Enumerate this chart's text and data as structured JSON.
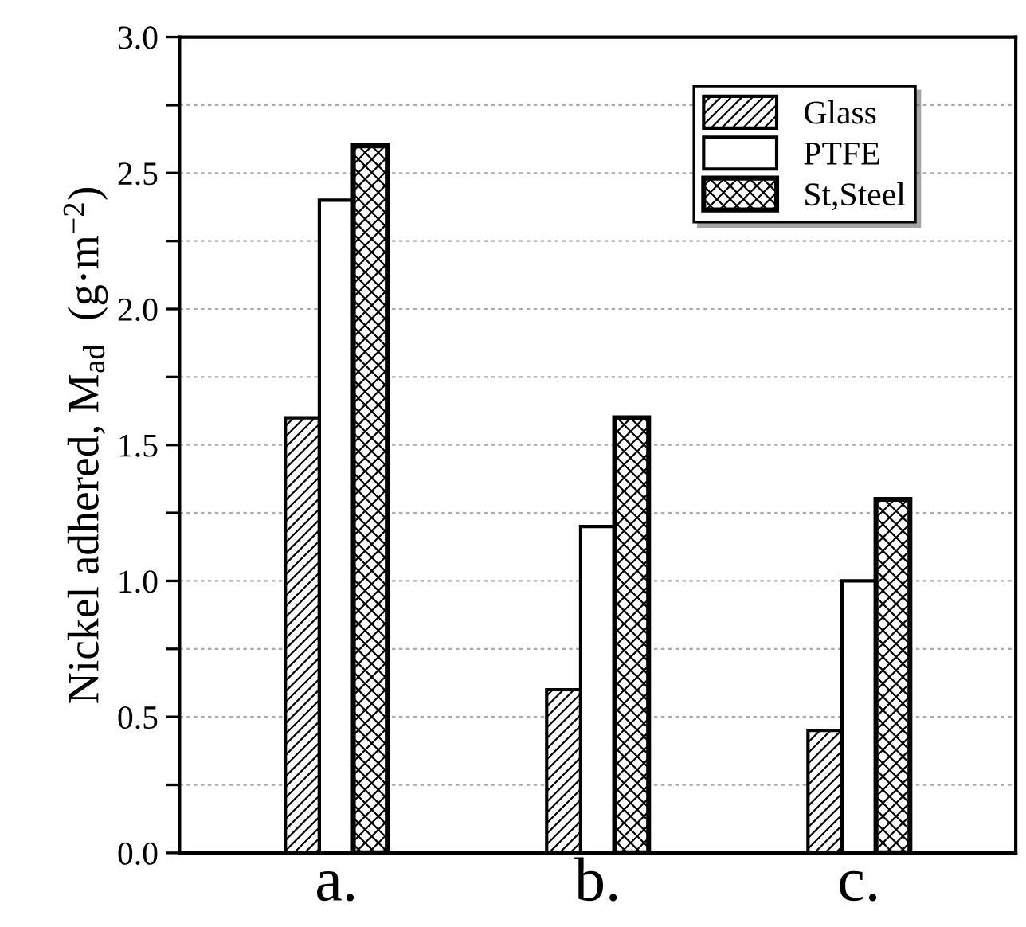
{
  "chart_data": {
    "type": "bar",
    "ylabel": "Nickel adhered, M$_{ad}$  (g·m$^{−2}$)",
    "categories": [
      "a.",
      "b.",
      "c."
    ],
    "series": [
      {
        "name": "Glass",
        "color": "#000000",
        "values": [
          1.6,
          0.6,
          0.45
        ]
      },
      {
        "name": "PTFE",
        "color": "#ffffff",
        "values": [
          2.4,
          1.2,
          1.0
        ]
      },
      {
        "name": "St,Steel",
        "color": "#000000",
        "values": [
          2.6,
          1.6,
          1.3
        ]
      }
    ],
    "ylim": [
      0,
      3.0
    ],
    "yticks": [
      {
        "value": 0,
        "label": "0.0"
      },
      {
        "value": 0.25,
        "label": null
      },
      {
        "value": 0.5,
        "label": "0.5"
      },
      {
        "value": 0.75,
        "label": null
      },
      {
        "value": 1.0,
        "label": "1.0"
      },
      {
        "value": 1.25,
        "label": null
      },
      {
        "value": 1.5,
        "label": "1.5"
      },
      {
        "value": 1.75,
        "label": null
      },
      {
        "value": 2.0,
        "label": "2.0"
      },
      {
        "value": 2.25,
        "label": null
      },
      {
        "value": 2.5,
        "label": "2.5"
      },
      {
        "value": 2.75,
        "label": null
      },
      {
        "value": 3.0,
        "label": "3.0"
      }
    ],
    "grid": "y",
    "legend": "top right"
  }
}
